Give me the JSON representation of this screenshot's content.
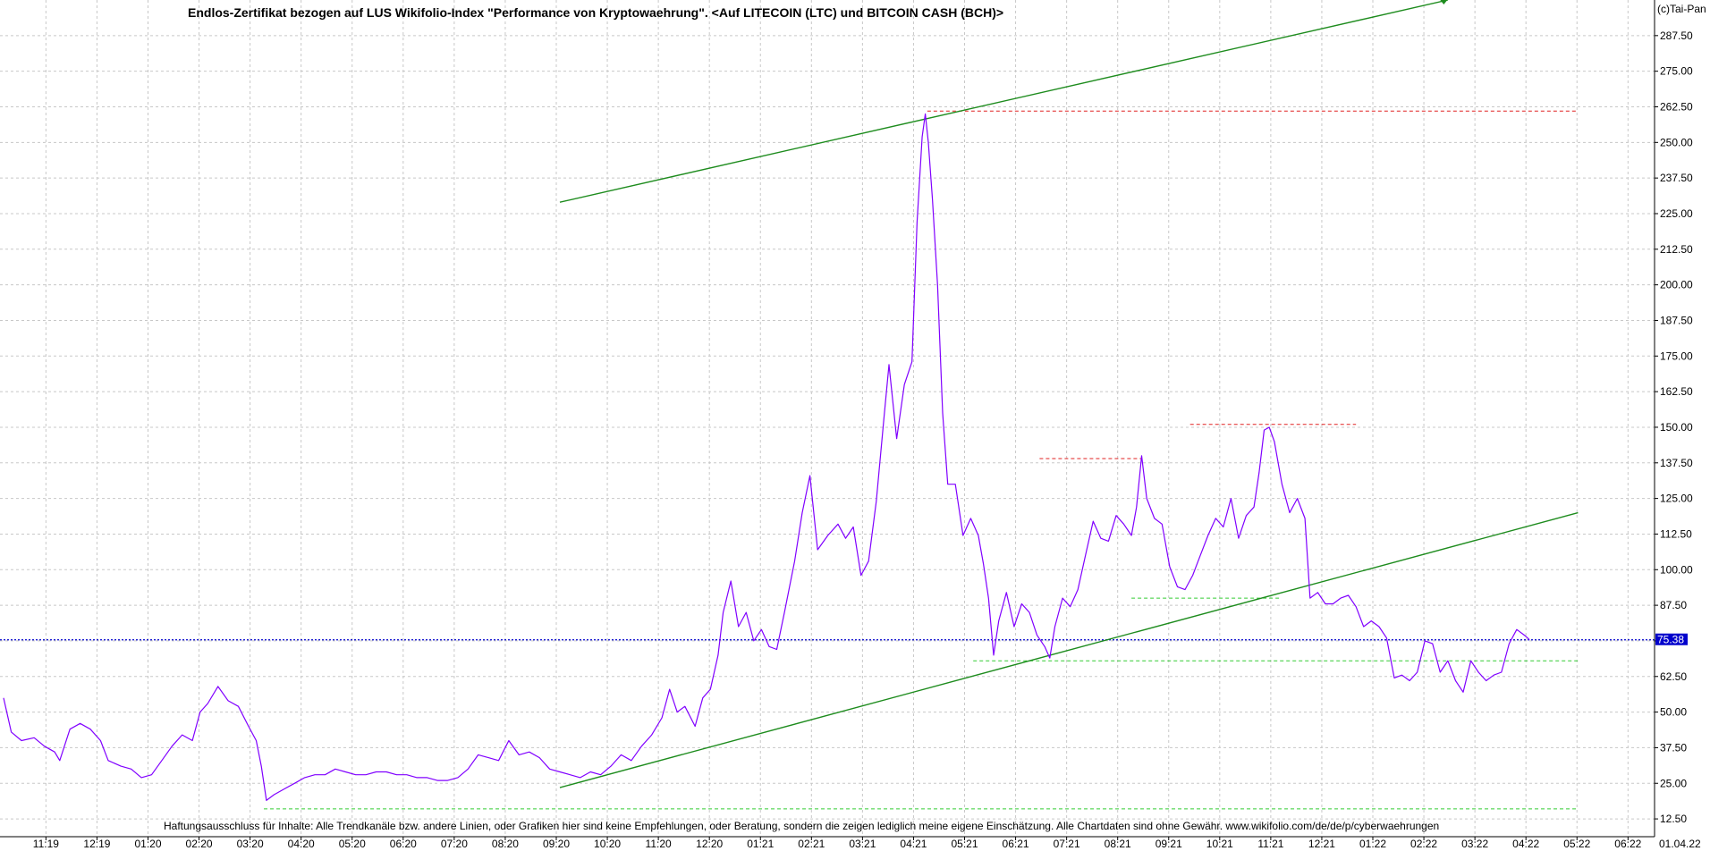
{
  "chart_data": {
    "type": "line",
    "title": "Endlos-Zertifikat bezogen auf LUS Wikifolio-Index \"Performance von Kryptowaehrung\". <Auf LITECOIN (LTC) und BITCOIN CASH (BCH)>",
    "copyright": "(c)Tai-Pan",
    "disclaimer": "Haftungsausschluss für Inhalte: Alle Trendkanäle bzw. andere Linien, oder Grafiken hier sind keine Empfehlungen, oder Beratung, sondern die zeigen lediglich meine eigene Einschätzung. Alle Chartdaten sind ohne Gewähr.  www.wikifolio.com/de/de/p/cyberwaehrungen",
    "ylim": [
      6.25,
      300
    ],
    "grid": true,
    "y_ticks": [
      12.5,
      25.0,
      37.5,
      50.0,
      62.5,
      75.0,
      87.5,
      100.0,
      112.5,
      125.0,
      137.5,
      150.0,
      162.5,
      175.0,
      187.5,
      200.0,
      212.5,
      225.0,
      237.5,
      250.0,
      262.5,
      275.0,
      287.5
    ],
    "y_tick_labels": [
      "12.50",
      "25.00",
      "37.50",
      "50.00",
      "62.50",
      "75.00",
      "87.50",
      "100.00",
      "112.50",
      "125.00",
      "137.50",
      "150.00",
      "162.50",
      "175.00",
      "187.50",
      "200.00",
      "212.50",
      "225.00",
      "237.50",
      "250.00",
      "262.50",
      "275.00",
      "287.50"
    ],
    "x_ticks": [
      0.83,
      1.83,
      2.83,
      3.83,
      4.83,
      5.83,
      6.83,
      7.83,
      8.83,
      9.83,
      10.83,
      11.83,
      12.83,
      13.83,
      14.83,
      15.83,
      16.83,
      17.83,
      18.83,
      19.83,
      20.83,
      21.83,
      22.83,
      23.83,
      24.83,
      25.83,
      26.83,
      27.83,
      28.83,
      29.83,
      30.83,
      31.83
    ],
    "x_tick_labels": [
      "11:19",
      "12:19",
      "01:20",
      "02:20",
      "03:20",
      "04:20",
      "05:20",
      "06:20",
      "07:20",
      "08:20",
      "09:20",
      "10:20",
      "11:20",
      "12:20",
      "01:21",
      "02:21",
      "03:21",
      "04:21",
      "05:21",
      "06:21",
      "07:21",
      "08:21",
      "09:21",
      "10:21",
      "11:21",
      "12:21",
      "01:22",
      "02:22",
      "03:22",
      "04:22",
      "05:22",
      "06:22"
    ],
    "x_axis_end_label": "01.04.22",
    "xlim": [
      0,
      32.35
    ],
    "last_value_label": "75.38",
    "series": [
      {
        "color": "#8000ff",
        "points": [
          [
            0.0,
            55
          ],
          [
            0.15,
            43
          ],
          [
            0.35,
            40
          ],
          [
            0.6,
            41
          ],
          [
            0.8,
            38
          ],
          [
            1.0,
            36
          ],
          [
            1.1,
            33
          ],
          [
            1.3,
            44
          ],
          [
            1.5,
            46
          ],
          [
            1.7,
            44
          ],
          [
            1.9,
            40
          ],
          [
            2.05,
            33
          ],
          [
            2.3,
            31
          ],
          [
            2.5,
            30
          ],
          [
            2.7,
            27
          ],
          [
            2.9,
            28
          ],
          [
            3.1,
            33
          ],
          [
            3.3,
            38
          ],
          [
            3.5,
            42
          ],
          [
            3.7,
            40
          ],
          [
            3.85,
            50
          ],
          [
            4.0,
            53
          ],
          [
            4.2,
            59
          ],
          [
            4.4,
            54
          ],
          [
            4.6,
            52
          ],
          [
            4.8,
            45
          ],
          [
            4.95,
            40
          ],
          [
            5.05,
            31
          ],
          [
            5.15,
            19
          ],
          [
            5.3,
            21
          ],
          [
            5.5,
            23
          ],
          [
            5.7,
            25
          ],
          [
            5.9,
            27
          ],
          [
            6.1,
            28
          ],
          [
            6.3,
            28
          ],
          [
            6.5,
            30
          ],
          [
            6.7,
            29
          ],
          [
            6.9,
            28
          ],
          [
            7.1,
            28
          ],
          [
            7.3,
            29
          ],
          [
            7.5,
            29
          ],
          [
            7.7,
            28
          ],
          [
            7.9,
            28
          ],
          [
            8.1,
            27
          ],
          [
            8.3,
            27
          ],
          [
            8.5,
            26
          ],
          [
            8.7,
            26
          ],
          [
            8.9,
            27
          ],
          [
            9.1,
            30
          ],
          [
            9.3,
            35
          ],
          [
            9.5,
            34
          ],
          [
            9.7,
            33
          ],
          [
            9.9,
            40
          ],
          [
            10.1,
            35
          ],
          [
            10.3,
            36
          ],
          [
            10.5,
            34
          ],
          [
            10.7,
            30
          ],
          [
            10.9,
            29
          ],
          [
            11.1,
            28
          ],
          [
            11.3,
            27
          ],
          [
            11.5,
            29
          ],
          [
            11.7,
            28
          ],
          [
            11.9,
            31
          ],
          [
            12.1,
            35
          ],
          [
            12.3,
            33
          ],
          [
            12.5,
            38
          ],
          [
            12.7,
            42
          ],
          [
            12.9,
            48
          ],
          [
            13.05,
            58
          ],
          [
            13.2,
            50
          ],
          [
            13.35,
            52
          ],
          [
            13.55,
            45
          ],
          [
            13.7,
            55
          ],
          [
            13.85,
            58
          ],
          [
            14.0,
            70
          ],
          [
            14.1,
            85
          ],
          [
            14.25,
            96
          ],
          [
            14.4,
            80
          ],
          [
            14.55,
            85
          ],
          [
            14.7,
            75
          ],
          [
            14.85,
            79
          ],
          [
            15.0,
            73
          ],
          [
            15.15,
            72
          ],
          [
            15.3,
            85
          ],
          [
            15.5,
            103
          ],
          [
            15.65,
            120
          ],
          [
            15.8,
            133
          ],
          [
            15.95,
            107
          ],
          [
            16.15,
            112
          ],
          [
            16.35,
            116
          ],
          [
            16.5,
            111
          ],
          [
            16.65,
            115
          ],
          [
            16.8,
            98
          ],
          [
            16.95,
            103
          ],
          [
            17.1,
            124
          ],
          [
            17.25,
            153
          ],
          [
            17.35,
            172
          ],
          [
            17.5,
            146
          ],
          [
            17.65,
            165
          ],
          [
            17.8,
            173
          ],
          [
            17.9,
            222
          ],
          [
            18.0,
            252
          ],
          [
            18.06,
            260
          ],
          [
            18.12,
            250
          ],
          [
            18.2,
            230
          ],
          [
            18.3,
            200
          ],
          [
            18.4,
            155
          ],
          [
            18.5,
            130
          ],
          [
            18.65,
            130
          ],
          [
            18.8,
            112
          ],
          [
            18.95,
            118
          ],
          [
            19.1,
            112
          ],
          [
            19.2,
            102
          ],
          [
            19.3,
            90
          ],
          [
            19.4,
            70
          ],
          [
            19.5,
            82
          ],
          [
            19.65,
            92
          ],
          [
            19.8,
            80
          ],
          [
            19.95,
            88
          ],
          [
            20.1,
            85
          ],
          [
            20.25,
            77
          ],
          [
            20.4,
            73
          ],
          [
            20.5,
            69
          ],
          [
            20.6,
            80
          ],
          [
            20.75,
            90
          ],
          [
            20.9,
            87
          ],
          [
            21.05,
            93
          ],
          [
            21.2,
            105
          ],
          [
            21.35,
            117
          ],
          [
            21.5,
            111
          ],
          [
            21.65,
            110
          ],
          [
            21.8,
            119
          ],
          [
            21.95,
            116
          ],
          [
            22.1,
            112
          ],
          [
            22.2,
            122
          ],
          [
            22.3,
            140
          ],
          [
            22.4,
            125
          ],
          [
            22.55,
            118
          ],
          [
            22.7,
            116
          ],
          [
            22.85,
            101
          ],
          [
            23.0,
            94
          ],
          [
            23.15,
            93
          ],
          [
            23.3,
            98
          ],
          [
            23.45,
            105
          ],
          [
            23.6,
            112
          ],
          [
            23.75,
            118
          ],
          [
            23.9,
            115
          ],
          [
            24.05,
            125
          ],
          [
            24.2,
            111
          ],
          [
            24.35,
            119
          ],
          [
            24.5,
            122
          ],
          [
            24.6,
            134
          ],
          [
            24.7,
            149
          ],
          [
            24.8,
            150
          ],
          [
            24.9,
            145
          ],
          [
            25.05,
            130
          ],
          [
            25.2,
            120
          ],
          [
            25.35,
            125
          ],
          [
            25.5,
            118
          ],
          [
            25.6,
            90
          ],
          [
            25.75,
            92
          ],
          [
            25.9,
            88
          ],
          [
            26.05,
            88
          ],
          [
            26.2,
            90
          ],
          [
            26.35,
            91
          ],
          [
            26.5,
            87
          ],
          [
            26.65,
            80
          ],
          [
            26.8,
            82
          ],
          [
            26.95,
            80
          ],
          [
            27.1,
            76
          ],
          [
            27.25,
            62
          ],
          [
            27.4,
            63
          ],
          [
            27.55,
            61
          ],
          [
            27.7,
            64
          ],
          [
            27.85,
            75
          ],
          [
            28.0,
            74
          ],
          [
            28.15,
            64
          ],
          [
            28.3,
            68
          ],
          [
            28.45,
            61
          ],
          [
            28.6,
            57
          ],
          [
            28.75,
            68
          ],
          [
            28.9,
            64
          ],
          [
            29.05,
            61
          ],
          [
            29.2,
            63
          ],
          [
            29.35,
            64
          ],
          [
            29.5,
            74
          ],
          [
            29.65,
            79
          ],
          [
            29.8,
            77
          ],
          [
            29.9,
            75.38
          ]
        ]
      }
    ],
    "annotations": {
      "green_trendlines": [
        {
          "from": [
            10.9,
            229
          ],
          "to": [
            28.3,
            300
          ]
        },
        {
          "from": [
            10.9,
            23.5
          ],
          "to": [
            30.85,
            120
          ]
        }
      ],
      "red_dashed_lines": [
        {
          "y": 261,
          "from_x": 18.1,
          "to_x": 30.85
        },
        {
          "y": 139,
          "from_x": 20.3,
          "to_x": 22.3
        },
        {
          "y": 151,
          "from_x": 23.25,
          "to_x": 26.5
        }
      ],
      "light_green_dashed_lines": [
        {
          "y": 90,
          "from_x": 22.1,
          "to_x": 25.0
        },
        {
          "y": 68,
          "from_x": 19.0,
          "to_x": 30.85
        },
        {
          "y": 16,
          "from_x": 5.1,
          "to_x": 30.85
        }
      ],
      "blue_dotted_line": {
        "y": 75.38
      },
      "marker_point": [
        28.22,
        300
      ]
    }
  }
}
